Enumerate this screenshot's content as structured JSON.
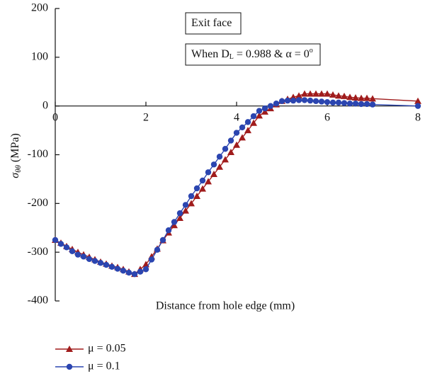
{
  "chart_data": {
    "type": "line",
    "y_label": {
      "symbol": "σ",
      "subscript": "θθ",
      "unit": " (MPa)"
    },
    "x_label": "Distance from hole edge (mm)",
    "annotations": [
      {
        "parts": [
          "Exit face"
        ]
      },
      {
        "parts": [
          "When D",
          "L",
          " = 0.988 & α = 0",
          "o"
        ]
      }
    ],
    "x": [
      0,
      0.125,
      0.25,
      0.375,
      0.5,
      0.625,
      0.75,
      0.875,
      1,
      1.125,
      1.25,
      1.375,
      1.5,
      1.625,
      1.75,
      1.875,
      2,
      2.125,
      2.25,
      2.375,
      2.5,
      2.625,
      2.75,
      2.875,
      3,
      3.125,
      3.25,
      3.375,
      3.5,
      3.625,
      3.75,
      3.875,
      4,
      4.125,
      4.25,
      4.375,
      4.5,
      4.625,
      4.75,
      4.875,
      5,
      5.125,
      5.25,
      5.375,
      5.5,
      5.625,
      5.75,
      5.875,
      6,
      6.125,
      6.25,
      6.375,
      6.5,
      6.625,
      6.75,
      6.875,
      7,
      8
    ],
    "series": [
      {
        "name": "μ = 0.05",
        "color": "#a01c1c",
        "marker": "triangle",
        "values": [
          -275,
          -281,
          -288,
          -294,
          -300,
          -305,
          -310,
          -315,
          -320,
          -324,
          -328,
          -331,
          -335,
          -340,
          -345,
          -335,
          -325,
          -309,
          -293,
          -276,
          -260,
          -245,
          -230,
          -215,
          -200,
          -185,
          -170,
          -155,
          -140,
          -125,
          -110,
          -95,
          -80,
          -65,
          -50,
          -35,
          -20,
          -12,
          -5,
          3,
          10,
          14,
          18,
          21,
          25,
          25,
          25,
          25,
          25,
          23,
          21,
          20,
          18,
          17,
          16,
          16,
          15,
          10
        ]
      },
      {
        "name": "μ = 0.1",
        "color": "#2b45b0",
        "marker": "circle",
        "values": [
          -275,
          -283,
          -290,
          -298,
          -305,
          -309,
          -314,
          -318,
          -322,
          -326,
          -330,
          -334,
          -338,
          -342,
          -345,
          -340,
          -335,
          -315,
          -295,
          -275,
          -255,
          -238,
          -220,
          -203,
          -185,
          -169,
          -153,
          -136,
          -120,
          -104,
          -88,
          -71,
          -55,
          -44,
          -33,
          -21,
          -10,
          -5,
          0,
          5,
          10,
          11,
          11,
          12,
          12,
          11,
          10,
          9,
          8,
          7,
          7,
          6,
          5,
          5,
          4,
          4,
          3,
          0
        ]
      }
    ],
    "xlim": [
      0,
      8
    ],
    "xticks": [
      0,
      2,
      4,
      6,
      8
    ],
    "ylim": [
      -400,
      200
    ],
    "yticks": [
      -400,
      -300,
      -200,
      -100,
      0,
      100,
      200
    ]
  }
}
